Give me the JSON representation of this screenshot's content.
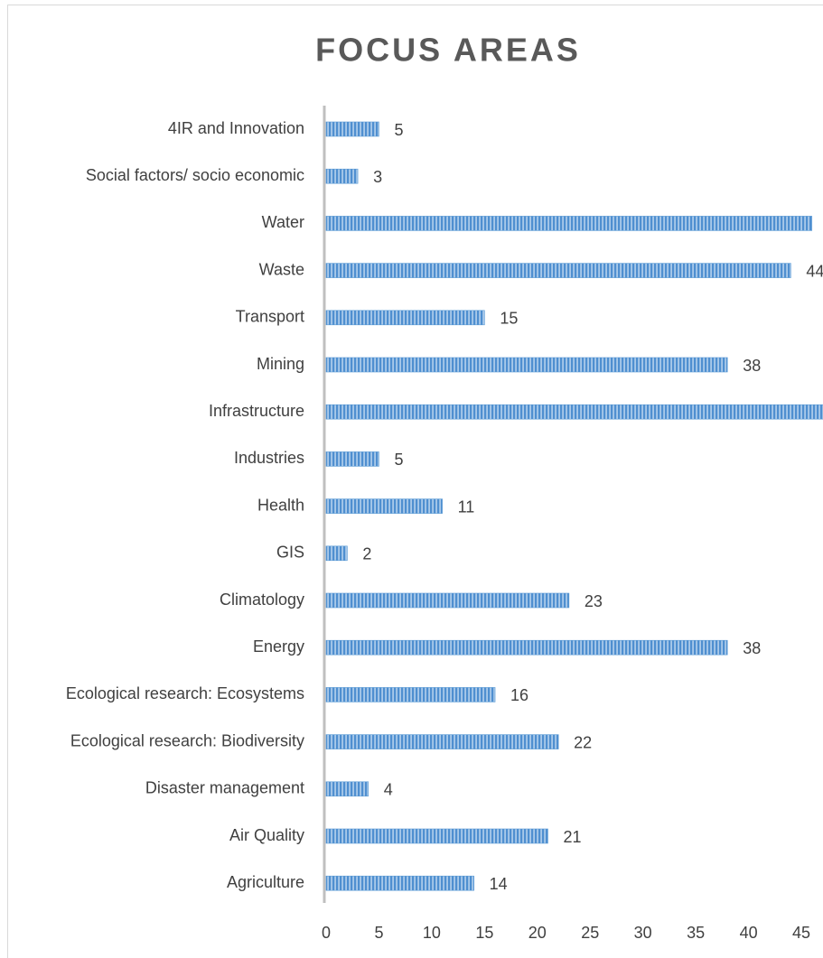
{
  "chart_data": {
    "type": "bar",
    "orientation": "horizontal",
    "title": "FOCUS AREAS",
    "categories": [
      "4IR and Innovation",
      "Social factors/ socio economic",
      "Water",
      "Waste",
      "Transport",
      "Mining",
      "Infrastructure",
      "Industries",
      "Health",
      "GIS",
      "Climatology",
      "Energy",
      "Ecological research: Ecosystems",
      "Ecological research: Biodiversity",
      "Disaster management",
      "Air Quality",
      "Agriculture"
    ],
    "values": [
      5,
      3,
      46,
      44,
      15,
      38,
      48,
      5,
      11,
      2,
      23,
      38,
      16,
      22,
      4,
      21,
      14
    ],
    "color": "#5b9bd5",
    "xlim": [
      0,
      50
    ],
    "xticks": [
      0,
      5,
      10,
      15,
      20,
      25,
      30,
      35,
      40,
      45,
      50
    ],
    "grid": false
  }
}
